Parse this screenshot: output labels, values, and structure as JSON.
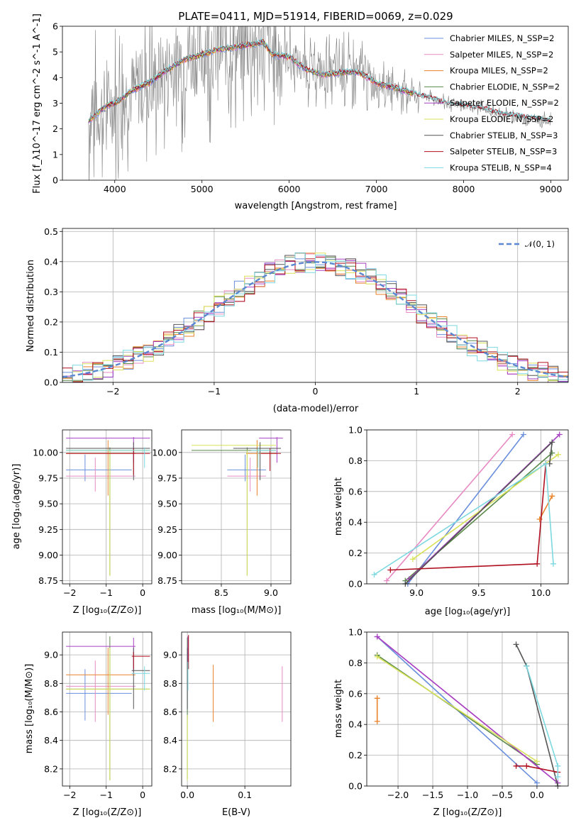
{
  "title": "PLATE=0411, MJD=51914, FIBERID=0069, z=0.029",
  "colors": [
    "#6a8fdc",
    "#e88bc4",
    "#e8822a",
    "#5b8a4a",
    "#a640c2",
    "#d9e25a",
    "#555555",
    "#b01020",
    "#7dd8e0"
  ],
  "spectrum": {
    "xlabel": "wavelength [Angstrom, rest frame]",
    "ylabel": "Flux [f_λ10^-17 erg cm^-2 s^-1 A^-1]",
    "xlim": [
      3400,
      9200
    ],
    "ylim": [
      0,
      6
    ],
    "xticks": [
      "4000",
      "5000",
      "6000",
      "7000",
      "8000",
      "9000"
    ],
    "yticks": [
      "0",
      "1",
      "2",
      "3",
      "4",
      "5",
      "6"
    ],
    "legend": [
      "Chabrier MILES, N_SSP=2",
      "Salpeter MILES, N_SSP=2",
      "Kroupa MILES, N_SSP=2",
      "Chabrier ELODIE, N_SSP=2",
      "Salpeter ELODIE, N_SSP=2",
      "Kroupa ELODIE, N_SSP=2",
      "Chabrier STELIB, N_SSP=3",
      "Salpeter STELIB, N_SSP=3",
      "Kroupa STELIB, N_SSP=4"
    ]
  },
  "chart_data": [
    {
      "type": "line",
      "title": "PLATE=0411, MJD=51914, FIBERID=0069, z=0.029",
      "xlabel": "wavelength [Angstrom, rest frame]",
      "ylabel": "Flux [f_λ10^-17 erg cm^-2 s^-1 A^-1]",
      "xlim": [
        3400,
        9200
      ],
      "ylim": [
        0,
        6
      ],
      "data_flux": {
        "x": [
          3700,
          3800,
          3900,
          4000,
          4200,
          4400,
          4600,
          4800,
          5000,
          5200,
          5400,
          5600,
          5700,
          5800,
          6000,
          6200,
          6400,
          6600,
          6800,
          7000,
          7200,
          7400,
          7600,
          7800,
          8000,
          8200,
          8400,
          8600,
          8800,
          9000
        ],
        "y": [
          2.3,
          2.6,
          2.9,
          3.0,
          3.5,
          3.8,
          4.3,
          4.7,
          4.9,
          5.1,
          5.2,
          5.3,
          5.4,
          4.9,
          4.8,
          4.3,
          4.1,
          4.2,
          4.2,
          3.8,
          3.6,
          3.4,
          3.2,
          3.0,
          2.9,
          2.8,
          2.6,
          2.5,
          2.4,
          2.3
        ]
      }
    },
    {
      "type": "line",
      "xlabel": "(data-model)/error",
      "ylabel": "Normed distribution",
      "xlim": [
        -2.5,
        2.5
      ],
      "ylim": [
        0,
        0.51
      ],
      "xticks": [
        "−2",
        "−1",
        "0",
        "1",
        "2"
      ],
      "yticks": [
        "0.0",
        "0.1",
        "0.2",
        "0.3",
        "0.4",
        "0.5"
      ],
      "legend": "𝒩(0, 1)",
      "series": [
        {
          "name": "𝒩(0, 1)",
          "x": [
            -2.5,
            -2,
            -1.5,
            -1,
            -0.5,
            0,
            0.5,
            1,
            1.5,
            2,
            2.5
          ],
          "values": [
            0.0175,
            0.054,
            0.1295,
            0.242,
            0.352,
            0.399,
            0.352,
            0.242,
            0.1295,
            0.054,
            0.0175
          ]
        }
      ]
    },
    {
      "type": "scatter",
      "xlabel": "Z [log10(Z/Z⊙)]",
      "ylabel": "age [log10(age/yr)]",
      "xlim": [
        -2.2,
        0.25
      ],
      "ylim": [
        8.72,
        10.22
      ],
      "xticks": [
        "−2",
        "−1",
        "0"
      ],
      "yticks": [
        "8.75",
        "9.00",
        "9.25",
        "9.50",
        "9.75",
        "10.00"
      ]
    },
    {
      "type": "scatter",
      "xlabel": "mass [log10(M/M⊙)]",
      "xlim": [
        8.1,
        9.2
      ],
      "ylim": [
        8.72,
        10.22
      ],
      "xticks": [
        "8.5",
        "9.0"
      ],
      "yticks": [
        "8.75",
        "9.00",
        "9.25",
        "9.50",
        "9.75",
        "10.00"
      ]
    },
    {
      "type": "line",
      "xlabel": "age  [log10(age/yr)]",
      "ylabel": "mass weight",
      "xlim": [
        8.6,
        10.22
      ],
      "ylim": [
        0,
        1
      ],
      "xticks": [
        "9.0",
        "9.5",
        "10.0"
      ],
      "yticks": [
        "0.0",
        "0.2",
        "0.4",
        "0.6",
        "0.8",
        "1.0"
      ],
      "series": [
        {
          "x": [
            8.93,
            9.86
          ],
          "values": [
            0.0,
            0.97
          ]
        },
        {
          "x": [
            8.76,
            9.77
          ],
          "values": [
            0.02,
            0.97
          ]
        },
        {
          "x": [
            9.99,
            10.09
          ],
          "values": [
            0.42,
            0.57
          ]
        },
        {
          "x": [
            8.91,
            10.09
          ],
          "values": [
            0.02,
            0.85
          ]
        },
        {
          "x": [
            8.94,
            10.15
          ],
          "values": [
            0.03,
            0.97
          ]
        },
        {
          "x": [
            8.97,
            10.14
          ],
          "values": [
            0.16,
            0.84
          ]
        },
        {
          "x": [
            8.91,
            10.09,
            10.07
          ],
          "values": [
            0.0,
            0.92,
            0.78
          ]
        },
        {
          "x": [
            8.79,
            9.97,
            10.04
          ],
          "values": [
            0.09,
            0.13,
            0.78
          ]
        },
        {
          "x": [
            8.66,
            10.04,
            10.1
          ],
          "values": [
            0.06,
            0.78,
            0.13
          ]
        }
      ]
    },
    {
      "type": "scatter",
      "xlabel": "Z [log10(Z/Z⊙)]",
      "ylabel": "mass [log10(M/M⊙)]",
      "xlim": [
        -2.2,
        0.25
      ],
      "ylim": [
        8.08,
        9.16
      ],
      "xticks": [
        "−2",
        "−1",
        "0"
      ],
      "yticks": [
        "8.2",
        "8.4",
        "8.6",
        "8.8",
        "9.0"
      ]
    },
    {
      "type": "scatter",
      "xlabel": "E(B-V)",
      "xlim": [
        -0.01,
        0.18
      ],
      "ylim": [
        8.08,
        9.16
      ],
      "xticks": [
        "0.0",
        "0.1"
      ],
      "yticks": [
        "8.2",
        "8.4",
        "8.6",
        "8.8",
        "9.0"
      ]
    },
    {
      "type": "line",
      "xlabel": "Z [log10(Z/Z⊙)]",
      "ylabel": "mass weight",
      "xlim": [
        -2.45,
        0.45
      ],
      "ylim": [
        0,
        1
      ],
      "xticks": [
        "−2.0",
        "−1.5",
        "−1.0",
        "−0.5",
        "0.0"
      ],
      "yticks": [
        "0.0",
        "0.2",
        "0.4",
        "0.6",
        "0.8",
        "1.0"
      ],
      "series": [
        {
          "x": [
            -2.3,
            0.0
          ],
          "values": [
            0.97,
            0.02
          ]
        },
        {
          "x": [
            -2.3,
            0.3
          ],
          "values": [
            0.97,
            0.02
          ]
        },
        {
          "x": [
            -2.3,
            -2.3
          ],
          "values": [
            0.42,
            0.57
          ]
        },
        {
          "x": [
            -2.3,
            0.0
          ],
          "values": [
            0.85,
            0.14
          ]
        },
        {
          "x": [
            -2.3,
            0.3
          ],
          "values": [
            0.97,
            0.02
          ]
        },
        {
          "x": [
            -2.3,
            0.0
          ],
          "values": [
            0.84,
            0.16
          ]
        },
        {
          "x": [
            -0.3,
            -0.15,
            0.3
          ],
          "values": [
            0.92,
            0.78,
            0.0
          ]
        },
        {
          "x": [
            -0.3,
            -0.15,
            0.3
          ],
          "values": [
            0.13,
            0.13,
            0.09
          ]
        },
        {
          "x": [
            -0.15,
            0.3,
            0.3
          ],
          "values": [
            0.78,
            0.13,
            0.06
          ]
        }
      ]
    }
  ],
  "hist_legend": "𝒩(0, 1)",
  "ax_age_Z": {
    "xlabel": "Z [log₁₀(Z/Z⊙)]",
    "ylabel": "age  [log₁₀(age/yr)]"
  },
  "ax_age_mass": {
    "xlabel": "mass [log₁₀(M/M⊙)]"
  },
  "ax_w_age": {
    "xlabel": "age  [log₁₀(age/yr)]",
    "ylabel": "mass weight"
  },
  "ax_mass_Z": {
    "xlabel": "Z [log₁₀(Z/Z⊙)]",
    "ylabel": "mass [log₁₀(M/M⊙)]"
  },
  "ax_mass_ebv": {
    "xlabel": "E(B-V)"
  },
  "ax_w_Z": {
    "xlabel": "Z [log₁₀(Z/Z⊙)]",
    "ylabel": "mass weight"
  }
}
